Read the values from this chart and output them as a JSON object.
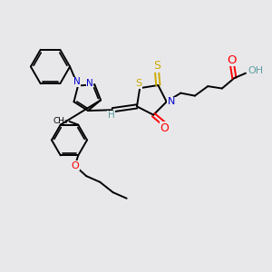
{
  "background_color": "#e8e8eb",
  "atom_colors": {
    "C": "#000000",
    "N": "#0000cc",
    "O": "#ff0000",
    "S": "#ccaa00",
    "H": "#5f9ea0"
  },
  "bond_color": "#000000",
  "lw": 1.4,
  "fs": 7.5
}
